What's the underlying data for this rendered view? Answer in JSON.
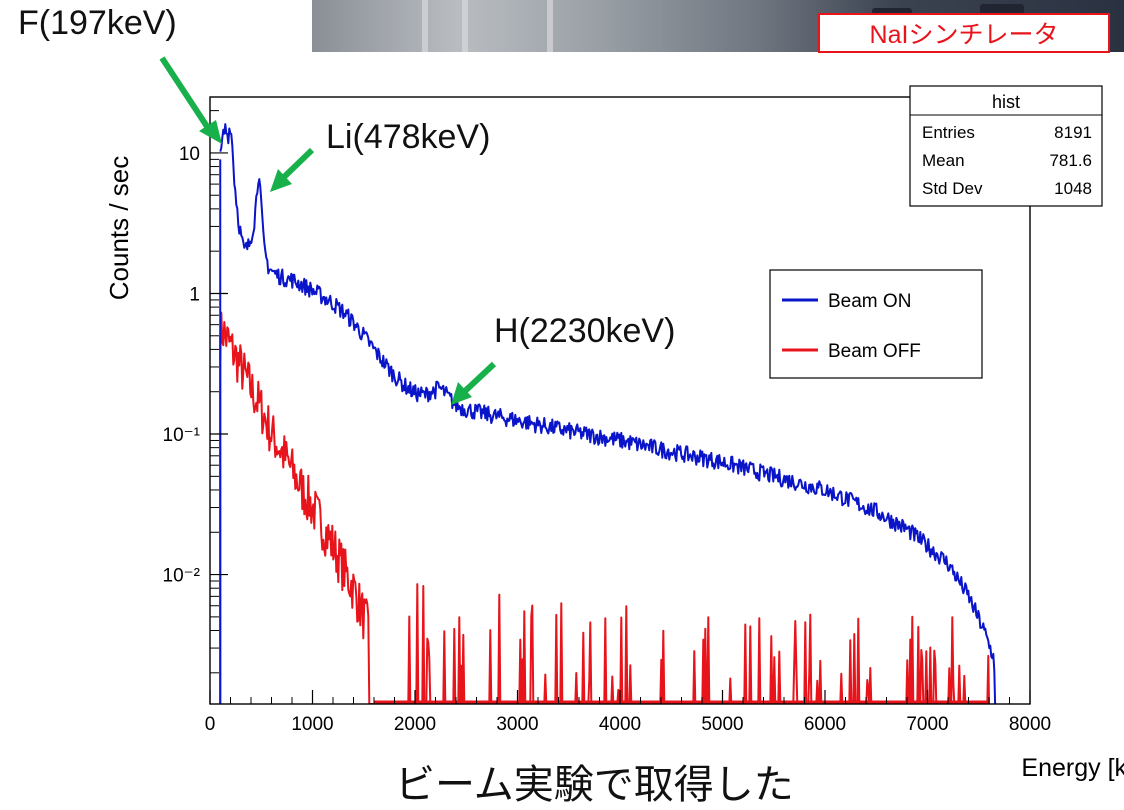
{
  "photo_label": "NaIシンチレータ",
  "annotations": [
    {
      "id": "F",
      "text": "F(197keV)"
    },
    {
      "id": "Li",
      "text": "Li(478keV)"
    },
    {
      "id": "H",
      "text": "H(2230keV)"
    }
  ],
  "bottom_caption": "ビーム実験で取得した",
  "colors": {
    "beam_on": "#0a14c8",
    "beam_off": "#e8141b",
    "arrow": "#17b04a",
    "tag": "#e8141b"
  },
  "chart_data": {
    "type": "line",
    "ylabel": "Counts / sec",
    "xlabel": "Energy [keV]",
    "xlim": [
      0,
      8000
    ],
    "ylim": [
      0.0012,
      25
    ],
    "y_scale": "log",
    "grid": false,
    "x_ticks": [
      "0",
      "1000",
      "2000",
      "3000",
      "4000",
      "5000",
      "6000",
      "7000",
      "8000"
    ],
    "y_ticks": [
      {
        "value": 10,
        "label": "10"
      },
      {
        "value": 1,
        "label": "1"
      },
      {
        "value": 0.1,
        "label": "10⁻¹"
      },
      {
        "value": 0.01,
        "label": "10⁻²"
      }
    ],
    "stats_box": {
      "title": "hist",
      "rows": [
        {
          "label": "Entries",
          "value": "8191"
        },
        {
          "label": "Mean",
          "value": "781.6"
        },
        {
          "label": "Std Dev",
          "value": "1048"
        }
      ]
    },
    "legend": {
      "position": "center-right"
    },
    "series": [
      {
        "name": "Beam ON",
        "color": "#0a14c8",
        "noise": 0.12,
        "x": [
          100,
          125,
          150,
          175,
          197,
          215,
          240,
          280,
          330,
          380,
          430,
          460,
          478,
          500,
          530,
          570,
          620,
          700,
          800,
          900,
          1000,
          1100,
          1200,
          1300,
          1400,
          1500,
          1600,
          1700,
          1800,
          1900,
          2000,
          2100,
          2150,
          2200,
          2230,
          2280,
          2350,
          2400,
          2500,
          2700,
          3000,
          3500,
          4000,
          4500,
          5000,
          5500,
          6000,
          6500,
          6800,
          7000,
          7200,
          7400,
          7550,
          7650,
          7660
        ],
        "y": [
          9,
          13,
          15,
          13,
          16,
          12,
          6,
          3.2,
          2.0,
          2.2,
          3.2,
          5.5,
          8.0,
          4.0,
          2.0,
          1.55,
          1.4,
          1.3,
          1.25,
          1.15,
          1.05,
          0.95,
          0.85,
          0.74,
          0.62,
          0.5,
          0.4,
          0.32,
          0.26,
          0.22,
          0.195,
          0.19,
          0.2,
          0.205,
          0.215,
          0.2,
          0.175,
          0.16,
          0.15,
          0.138,
          0.125,
          0.105,
          0.09,
          0.075,
          0.063,
          0.05,
          0.04,
          0.028,
          0.021,
          0.016,
          0.012,
          0.007,
          0.004,
          0.0025,
          0.0012
        ]
      },
      {
        "name": "Beam OFF",
        "color": "#e8141b",
        "noise": 0.35,
        "x": [
          100,
          125,
          150,
          200,
          300,
          400,
          500,
          600,
          700,
          800,
          900,
          1000,
          1100,
          1200,
          1300,
          1400,
          1500,
          1550,
          1600,
          2000,
          3000,
          4000,
          5000,
          6000,
          7000,
          7600
        ],
        "y": [
          0.5,
          0.55,
          0.5,
          0.42,
          0.3,
          0.21,
          0.15,
          0.1,
          0.075,
          0.055,
          0.04,
          0.03,
          0.022,
          0.016,
          0.011,
          0.008,
          0.005,
          0.004,
          0.003,
          0.0026,
          0.0018,
          0.0015,
          0.0014,
          0.0013,
          0.0013,
          0.0013
        ]
      }
    ]
  }
}
